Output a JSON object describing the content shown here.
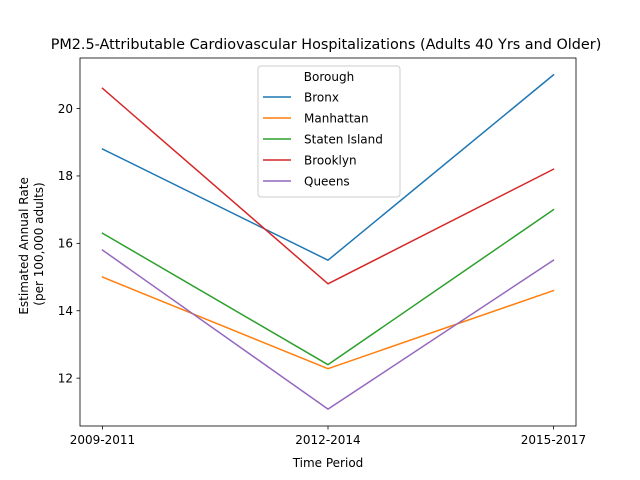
{
  "chart_data": {
    "type": "line",
    "title": "PM2.5-Attributable Cardiovascular Hospitalizations (Adults 40 Yrs and Older)",
    "xlabel": "Time Period",
    "ylabel_lines": [
      "Estimated Annual Rate",
      "(per 100,000 adults)"
    ],
    "categories": [
      "2009-2011",
      "2012-2014",
      "2015-2017"
    ],
    "yticks": [
      12,
      14,
      16,
      18,
      20
    ],
    "ylim": [
      10.58,
      21.5
    ],
    "grid": false,
    "legend": {
      "title": "Borough",
      "placement": "upper-center"
    },
    "series": [
      {
        "name": "Bronx",
        "color": "#1f77b4",
        "values": [
          18.8,
          15.5,
          21.0
        ]
      },
      {
        "name": "Manhattan",
        "color": "#ff7f0e",
        "values": [
          15.0,
          12.28,
          14.6
        ]
      },
      {
        "name": "Staten Island",
        "color": "#2ca02c",
        "values": [
          16.3,
          12.4,
          17.0
        ]
      },
      {
        "name": "Brooklyn",
        "color": "#d62728",
        "values": [
          20.6,
          14.8,
          18.2
        ]
      },
      {
        "name": "Queens",
        "color": "#9467bd",
        "values": [
          15.8,
          11.08,
          15.5
        ]
      }
    ]
  }
}
